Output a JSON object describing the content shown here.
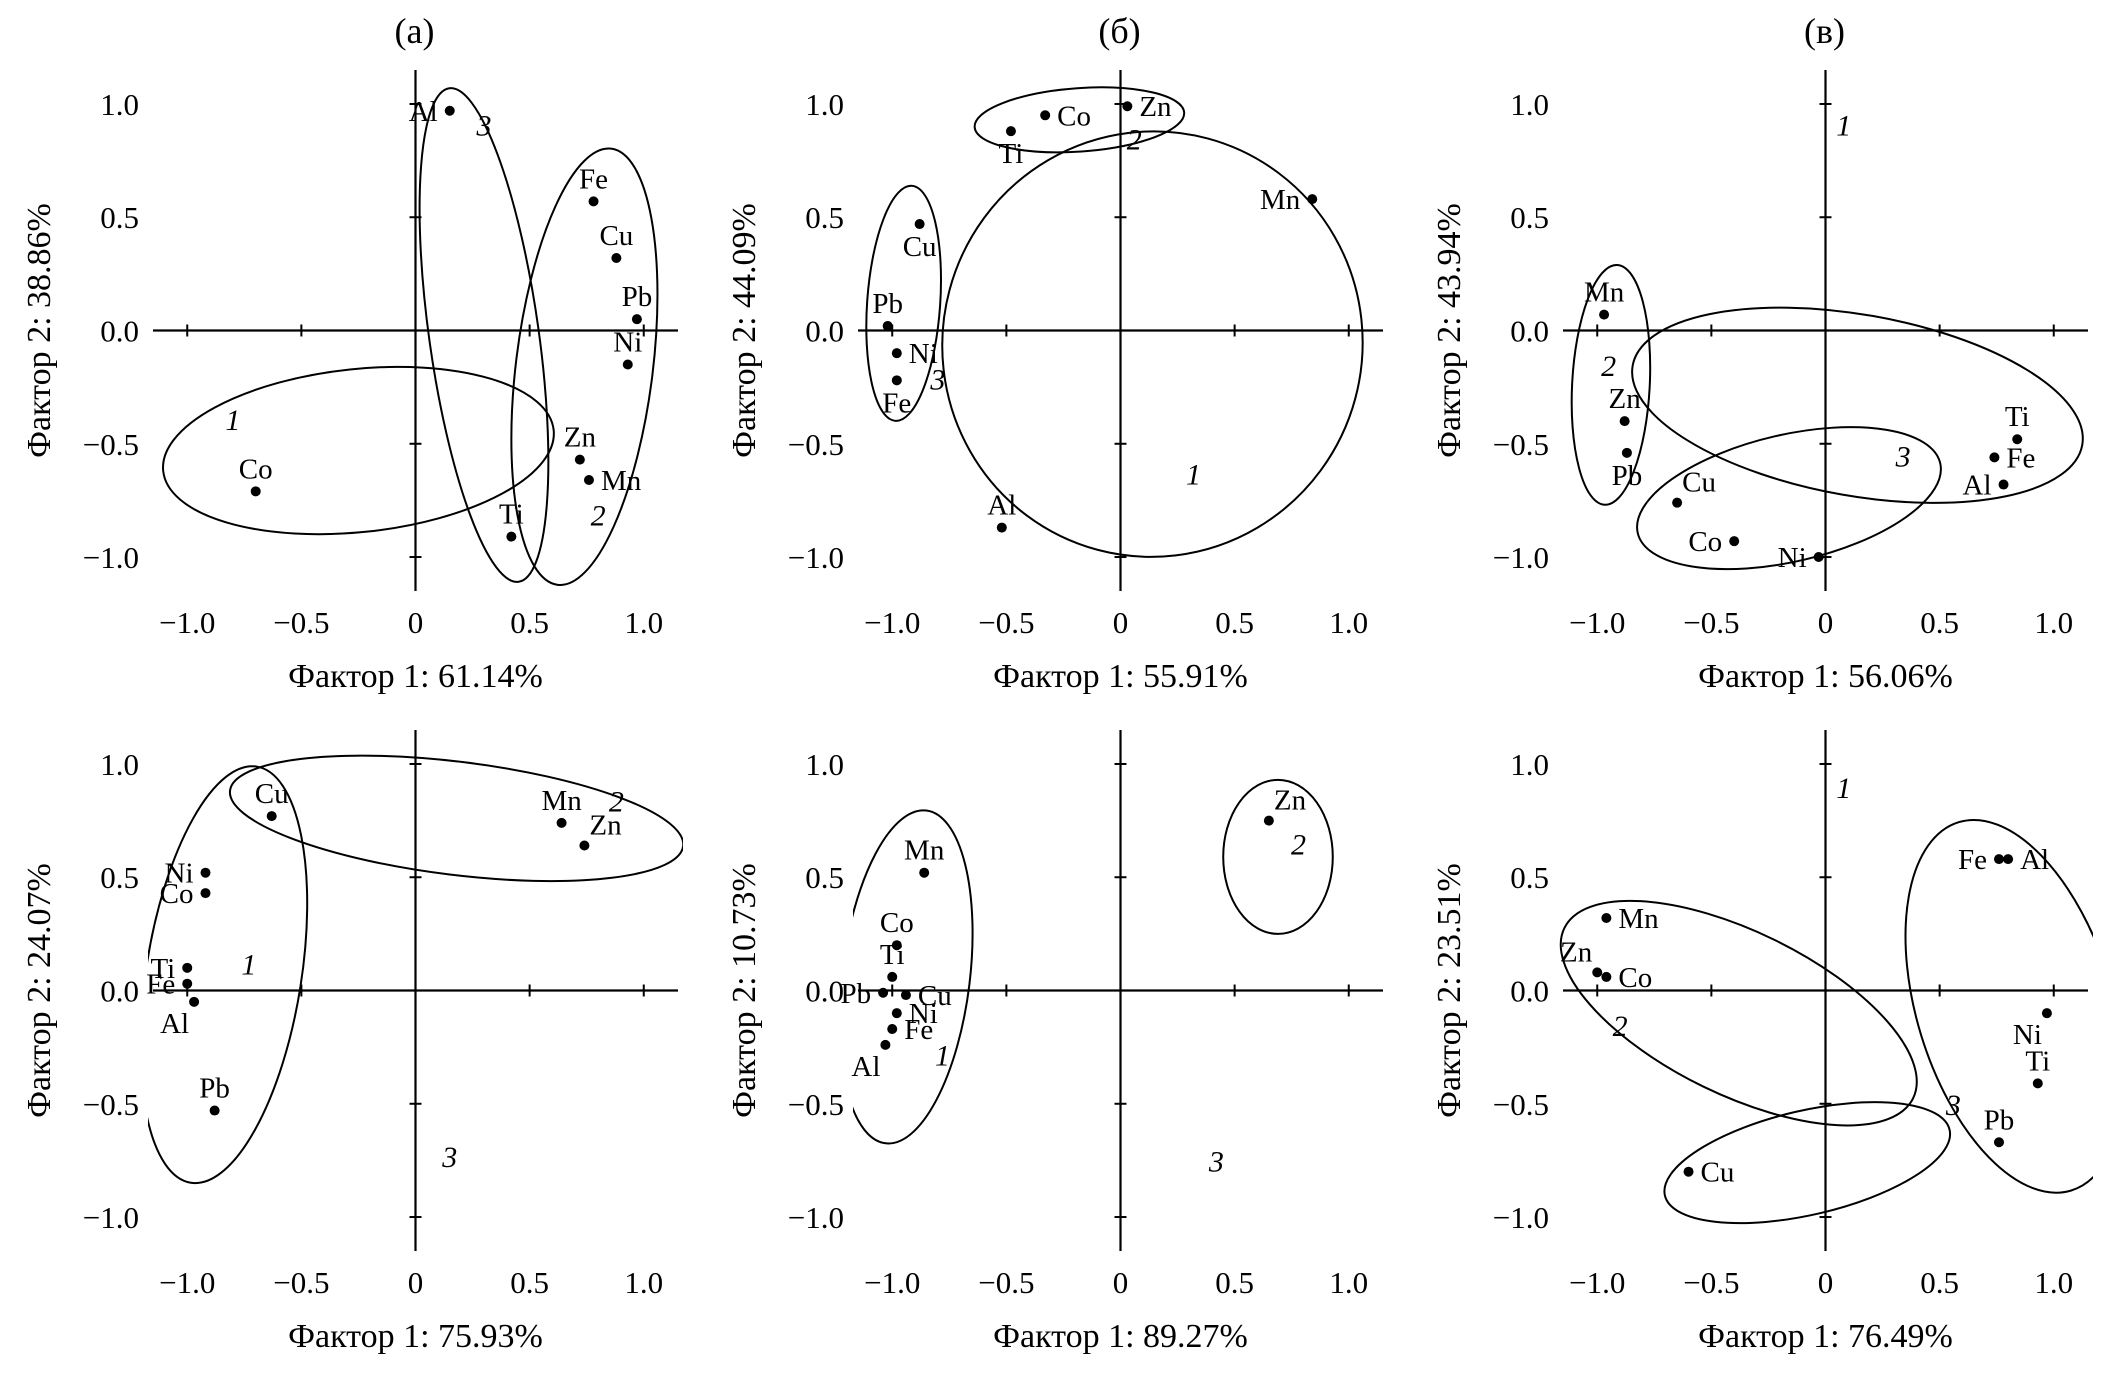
{
  "figure": {
    "panel_letters": [
      "(а)",
      "(б)",
      "(в)"
    ],
    "background": "#ffffff",
    "ink": "#000000"
  },
  "axes": {
    "tick_values": [
      -1.0,
      -0.5,
      0,
      0.5,
      1.0
    ],
    "x_tick_labels": [
      "−1.0",
      "−0.5",
      "0",
      "0.5",
      "1.0"
    ],
    "y_tick_labels": [
      "−1.0",
      "−0.5",
      "0.0",
      "0.5",
      "1.0"
    ],
    "x_range": [
      -1.15,
      1.15
    ],
    "y_range": [
      -1.15,
      1.15
    ],
    "grid": false
  },
  "chart_data": [
    {
      "type": "scatter",
      "id": "top-left",
      "xlabel": "Фактор 1: 61.14%",
      "ylabel": "Фактор 2: 38.86%",
      "points": [
        {
          "el": "Al",
          "x": 0.15,
          "y": 0.97,
          "label_pos": "left"
        },
        {
          "el": "Fe",
          "x": 0.78,
          "y": 0.57,
          "label_pos": "above"
        },
        {
          "el": "Cu",
          "x": 0.88,
          "y": 0.32,
          "label_pos": "above"
        },
        {
          "el": "Pb",
          "x": 0.97,
          "y": 0.05,
          "label_pos": "above"
        },
        {
          "el": "Ni",
          "x": 0.93,
          "y": -0.15,
          "label_pos": "above"
        },
        {
          "el": "Zn",
          "x": 0.72,
          "y": -0.57,
          "label_pos": "above"
        },
        {
          "el": "Mn",
          "x": 0.76,
          "y": -0.66,
          "label_pos": "right"
        },
        {
          "el": "Co",
          "x": -0.7,
          "y": -0.71,
          "label_pos": "above"
        },
        {
          "el": "Ti",
          "x": 0.42,
          "y": -0.91,
          "label_pos": "above"
        }
      ],
      "cluster_labels": [
        {
          "text": "1",
          "x": -0.8,
          "y": -0.44
        },
        {
          "text": "3",
          "x": 0.3,
          "y": 0.86
        },
        {
          "text": "2",
          "x": 0.8,
          "y": -0.86
        }
      ],
      "ellipses": [
        {
          "cx": -0.25,
          "cy": -0.53,
          "rx": 0.86,
          "ry": 0.36,
          "angle": -6
        },
        {
          "cx": 0.3,
          "cy": -0.02,
          "rx": 0.24,
          "ry": 1.1,
          "angle": -8
        },
        {
          "cx": 0.74,
          "cy": -0.16,
          "rx": 0.3,
          "ry": 0.97,
          "angle": 7
        }
      ]
    },
    {
      "type": "scatter",
      "id": "top-middle",
      "xlabel": "Фактор 1: 55.91%",
      "ylabel": "Фактор 2: 44.09%",
      "points": [
        {
          "el": "Ti",
          "x": -0.48,
          "y": 0.88,
          "label_pos": "below"
        },
        {
          "el": "Co",
          "x": -0.33,
          "y": 0.95,
          "label_pos": "right"
        },
        {
          "el": "Zn",
          "x": 0.03,
          "y": 0.99,
          "label_pos": "right"
        },
        {
          "el": "Mn",
          "x": 0.84,
          "y": 0.58,
          "label_pos": "left"
        },
        {
          "el": "Cu",
          "x": -0.88,
          "y": 0.47,
          "label_pos": "below"
        },
        {
          "el": "Pb",
          "x": -1.02,
          "y": 0.02,
          "label_pos": "above"
        },
        {
          "el": "Ni",
          "x": -0.98,
          "y": -0.1,
          "label_pos": "right"
        },
        {
          "el": "Fe",
          "x": -0.98,
          "y": -0.22,
          "label_pos": "below"
        },
        {
          "el": "Al",
          "x": -0.52,
          "y": -0.87,
          "label_pos": "above"
        }
      ],
      "cluster_labels": [
        {
          "text": "2",
          "x": 0.06,
          "y": 0.8
        },
        {
          "text": "3",
          "x": -0.8,
          "y": -0.26
        },
        {
          "text": "1",
          "x": 0.32,
          "y": -0.68
        }
      ],
      "ellipses": [
        {
          "cx": -0.18,
          "cy": 0.93,
          "rx": 0.46,
          "ry": 0.14,
          "angle": -4
        },
        {
          "cx": -0.95,
          "cy": 0.12,
          "rx": 0.16,
          "ry": 0.52,
          "angle": 4
        },
        {
          "cx": 0.14,
          "cy": -0.06,
          "rx": 0.92,
          "ry": 0.94,
          "angle": 15
        }
      ]
    },
    {
      "type": "scatter",
      "id": "top-right",
      "xlabel": "Фактор 1: 56.06%",
      "ylabel": "Фактор 2: 43.94%",
      "points": [
        {
          "el": "Mn",
          "x": -0.97,
          "y": 0.07,
          "label_pos": "above"
        },
        {
          "el": "Zn",
          "x": -0.88,
          "y": -0.4,
          "label_pos": "above"
        },
        {
          "el": "Pb",
          "x": -0.87,
          "y": -0.54,
          "label_pos": "below"
        },
        {
          "el": "Cu",
          "x": -0.65,
          "y": -0.76,
          "label_pos": "above-right"
        },
        {
          "el": "Co",
          "x": -0.4,
          "y": -0.93,
          "label_pos": "left"
        },
        {
          "el": "Ni",
          "x": -0.03,
          "y": -1.0,
          "label_pos": "left"
        },
        {
          "el": "Ti",
          "x": 0.84,
          "y": -0.48,
          "label_pos": "above"
        },
        {
          "el": "Fe",
          "x": 0.74,
          "y": -0.56,
          "label_pos": "right"
        },
        {
          "el": "Al",
          "x": 0.78,
          "y": -0.68,
          "label_pos": "left"
        }
      ],
      "cluster_labels": [
        {
          "text": "1",
          "x": 0.08,
          "y": 0.86
        },
        {
          "text": "2",
          "x": -0.95,
          "y": -0.2
        },
        {
          "text": "3",
          "x": 0.34,
          "y": -0.6
        }
      ],
      "ellipses": [
        {
          "cx": -0.94,
          "cy": -0.24,
          "rx": 0.17,
          "ry": 0.53,
          "angle": 3
        },
        {
          "cx": 0.14,
          "cy": -0.33,
          "rx": 1.0,
          "ry": 0.4,
          "angle": 10
        },
        {
          "cx": -0.16,
          "cy": -0.74,
          "rx": 0.68,
          "ry": 0.28,
          "angle": -13
        }
      ]
    },
    {
      "type": "scatter",
      "id": "bottom-left",
      "xlabel": "Фактор 1: 75.93%",
      "ylabel": "Фактор 2: 24.07%",
      "points": [
        {
          "el": "Cu",
          "x": -0.63,
          "y": 0.77,
          "label_pos": "above"
        },
        {
          "el": "Mn",
          "x": 0.64,
          "y": 0.74,
          "label_pos": "above"
        },
        {
          "el": "Zn",
          "x": 0.74,
          "y": 0.64,
          "label_pos": "above-right"
        },
        {
          "el": "Ni",
          "x": -0.92,
          "y": 0.52,
          "label_pos": "left"
        },
        {
          "el": "Co",
          "x": -0.92,
          "y": 0.43,
          "label_pos": "left"
        },
        {
          "el": "Ti",
          "x": -1.0,
          "y": 0.1,
          "label_pos": "left"
        },
        {
          "el": "Fe",
          "x": -1.0,
          "y": 0.03,
          "label_pos": "left"
        },
        {
          "el": "Al",
          "x": -0.97,
          "y": -0.05,
          "label_pos": "below-left"
        },
        {
          "el": "Pb",
          "x": -0.88,
          "y": -0.53,
          "label_pos": "above"
        }
      ],
      "cluster_labels": [
        {
          "text": "2",
          "x": 0.88,
          "y": 0.79
        },
        {
          "text": "1",
          "x": -0.73,
          "y": 0.07
        },
        {
          "text": "3",
          "x": 0.15,
          "y": -0.78
        }
      ],
      "ellipses": [
        {
          "cx": -0.84,
          "cy": 0.07,
          "rx": 0.34,
          "ry": 0.93,
          "angle": 9
        },
        {
          "cx": 0.18,
          "cy": 0.76,
          "rx": 1.0,
          "ry": 0.25,
          "angle": 7
        }
      ]
    },
    {
      "type": "scatter",
      "id": "bottom-middle",
      "xlabel": "Фактор 1: 89.27%",
      "ylabel": "Фактор 2: 10.73%",
      "points": [
        {
          "el": "Zn",
          "x": 0.65,
          "y": 0.75,
          "label_pos": "above-right"
        },
        {
          "el": "Mn",
          "x": -0.86,
          "y": 0.52,
          "label_pos": "above"
        },
        {
          "el": "Co",
          "x": -0.98,
          "y": 0.2,
          "label_pos": "above"
        },
        {
          "el": "Ti",
          "x": -1.0,
          "y": 0.06,
          "label_pos": "above"
        },
        {
          "el": "Pb",
          "x": -1.04,
          "y": -0.01,
          "label_pos": "left"
        },
        {
          "el": "Cu",
          "x": -0.94,
          "y": -0.02,
          "label_pos": "right"
        },
        {
          "el": "Ni",
          "x": -0.98,
          "y": -0.1,
          "label_pos": "right"
        },
        {
          "el": "Fe",
          "x": -1.0,
          "y": -0.17,
          "label_pos": "right"
        },
        {
          "el": "Al",
          "x": -1.03,
          "y": -0.24,
          "label_pos": "below-left"
        }
      ],
      "cluster_labels": [
        {
          "text": "2",
          "x": 0.78,
          "y": 0.6
        },
        {
          "text": "1",
          "x": -0.78,
          "y": -0.33
        },
        {
          "text": "3",
          "x": 0.42,
          "y": -0.8
        }
      ],
      "ellipses": [
        {
          "cx": -0.94,
          "cy": 0.06,
          "rx": 0.28,
          "ry": 0.74,
          "angle": 7
        },
        {
          "cx": 0.69,
          "cy": 0.59,
          "rx": 0.24,
          "ry": 0.34,
          "angle": 0
        }
      ]
    },
    {
      "type": "scatter",
      "id": "bottom-right",
      "xlabel": "Фактор 1: 76.49%",
      "ylabel": "Фактор 2: 23.51%",
      "points": [
        {
          "el": "Fe",
          "x": 0.76,
          "y": 0.58,
          "label_pos": "left"
        },
        {
          "el": "Al",
          "x": 0.8,
          "y": 0.58,
          "label_pos": "right"
        },
        {
          "el": "Mn",
          "x": -0.96,
          "y": 0.32,
          "label_pos": "right"
        },
        {
          "el": "Zn",
          "x": -1.0,
          "y": 0.08,
          "label_pos": "above-left"
        },
        {
          "el": "Co",
          "x": -0.96,
          "y": 0.06,
          "label_pos": "right"
        },
        {
          "el": "Ni",
          "x": 0.97,
          "y": -0.1,
          "label_pos": "below-left"
        },
        {
          "el": "Ti",
          "x": 0.93,
          "y": -0.41,
          "label_pos": "above"
        },
        {
          "el": "Pb",
          "x": 0.76,
          "y": -0.67,
          "label_pos": "above"
        },
        {
          "el": "Cu",
          "x": -0.6,
          "y": -0.8,
          "label_pos": "right"
        }
      ],
      "cluster_labels": [
        {
          "text": "1",
          "x": 0.08,
          "y": 0.85
        },
        {
          "text": "2",
          "x": -0.9,
          "y": -0.2
        },
        {
          "text": "3",
          "x": 0.56,
          "y": -0.55
        }
      ],
      "ellipses": [
        {
          "cx": -0.38,
          "cy": -0.1,
          "rx": 0.85,
          "ry": 0.36,
          "angle": 26
        },
        {
          "cx": 0.83,
          "cy": -0.07,
          "rx": 0.43,
          "ry": 0.85,
          "angle": -17
        },
        {
          "cx": -0.08,
          "cy": -0.76,
          "rx": 0.64,
          "ry": 0.23,
          "angle": -13
        }
      ]
    }
  ]
}
